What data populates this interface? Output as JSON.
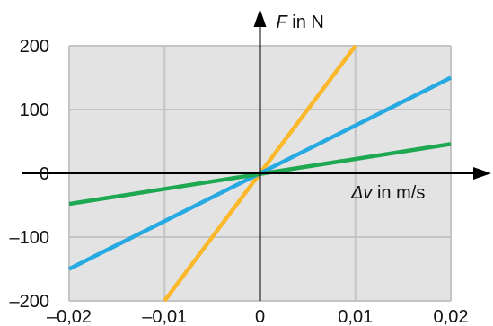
{
  "chart_data": {
    "type": "line",
    "title": "",
    "xlabel": {
      "symbol": "Δv",
      "rest": " in m/s"
    },
    "ylabel": {
      "symbol": "F",
      "rest": " in N"
    },
    "xlim": [
      -0.02,
      0.02
    ],
    "ylim": [
      -200,
      200
    ],
    "grid": true,
    "x_ticks": [
      -0.02,
      -0.01,
      0,
      0.01,
      0.02
    ],
    "x_tick_labels": [
      "–0,02",
      "–0,01",
      "0",
      "0,01",
      "0,02"
    ],
    "y_ticks": [
      -200,
      -100,
      0,
      100,
      200
    ],
    "y_tick_labels": [
      "–200",
      "–100",
      "0",
      "100",
      "200"
    ],
    "series": [
      {
        "color": "#fbb82a",
        "x": [
          -0.01,
          0.01
        ],
        "y": [
          -200,
          200
        ]
      },
      {
        "color": "#27aae1",
        "x": [
          -0.02,
          0.02
        ],
        "y": [
          -150,
          150
        ]
      },
      {
        "color": "#1da851",
        "x": [
          -0.02,
          0.02
        ],
        "y": [
          -48,
          46
        ]
      }
    ],
    "colors": {
      "plot_bg": "#e3e3e3",
      "grid": "#c4c4c4",
      "axis": "#000000"
    }
  }
}
